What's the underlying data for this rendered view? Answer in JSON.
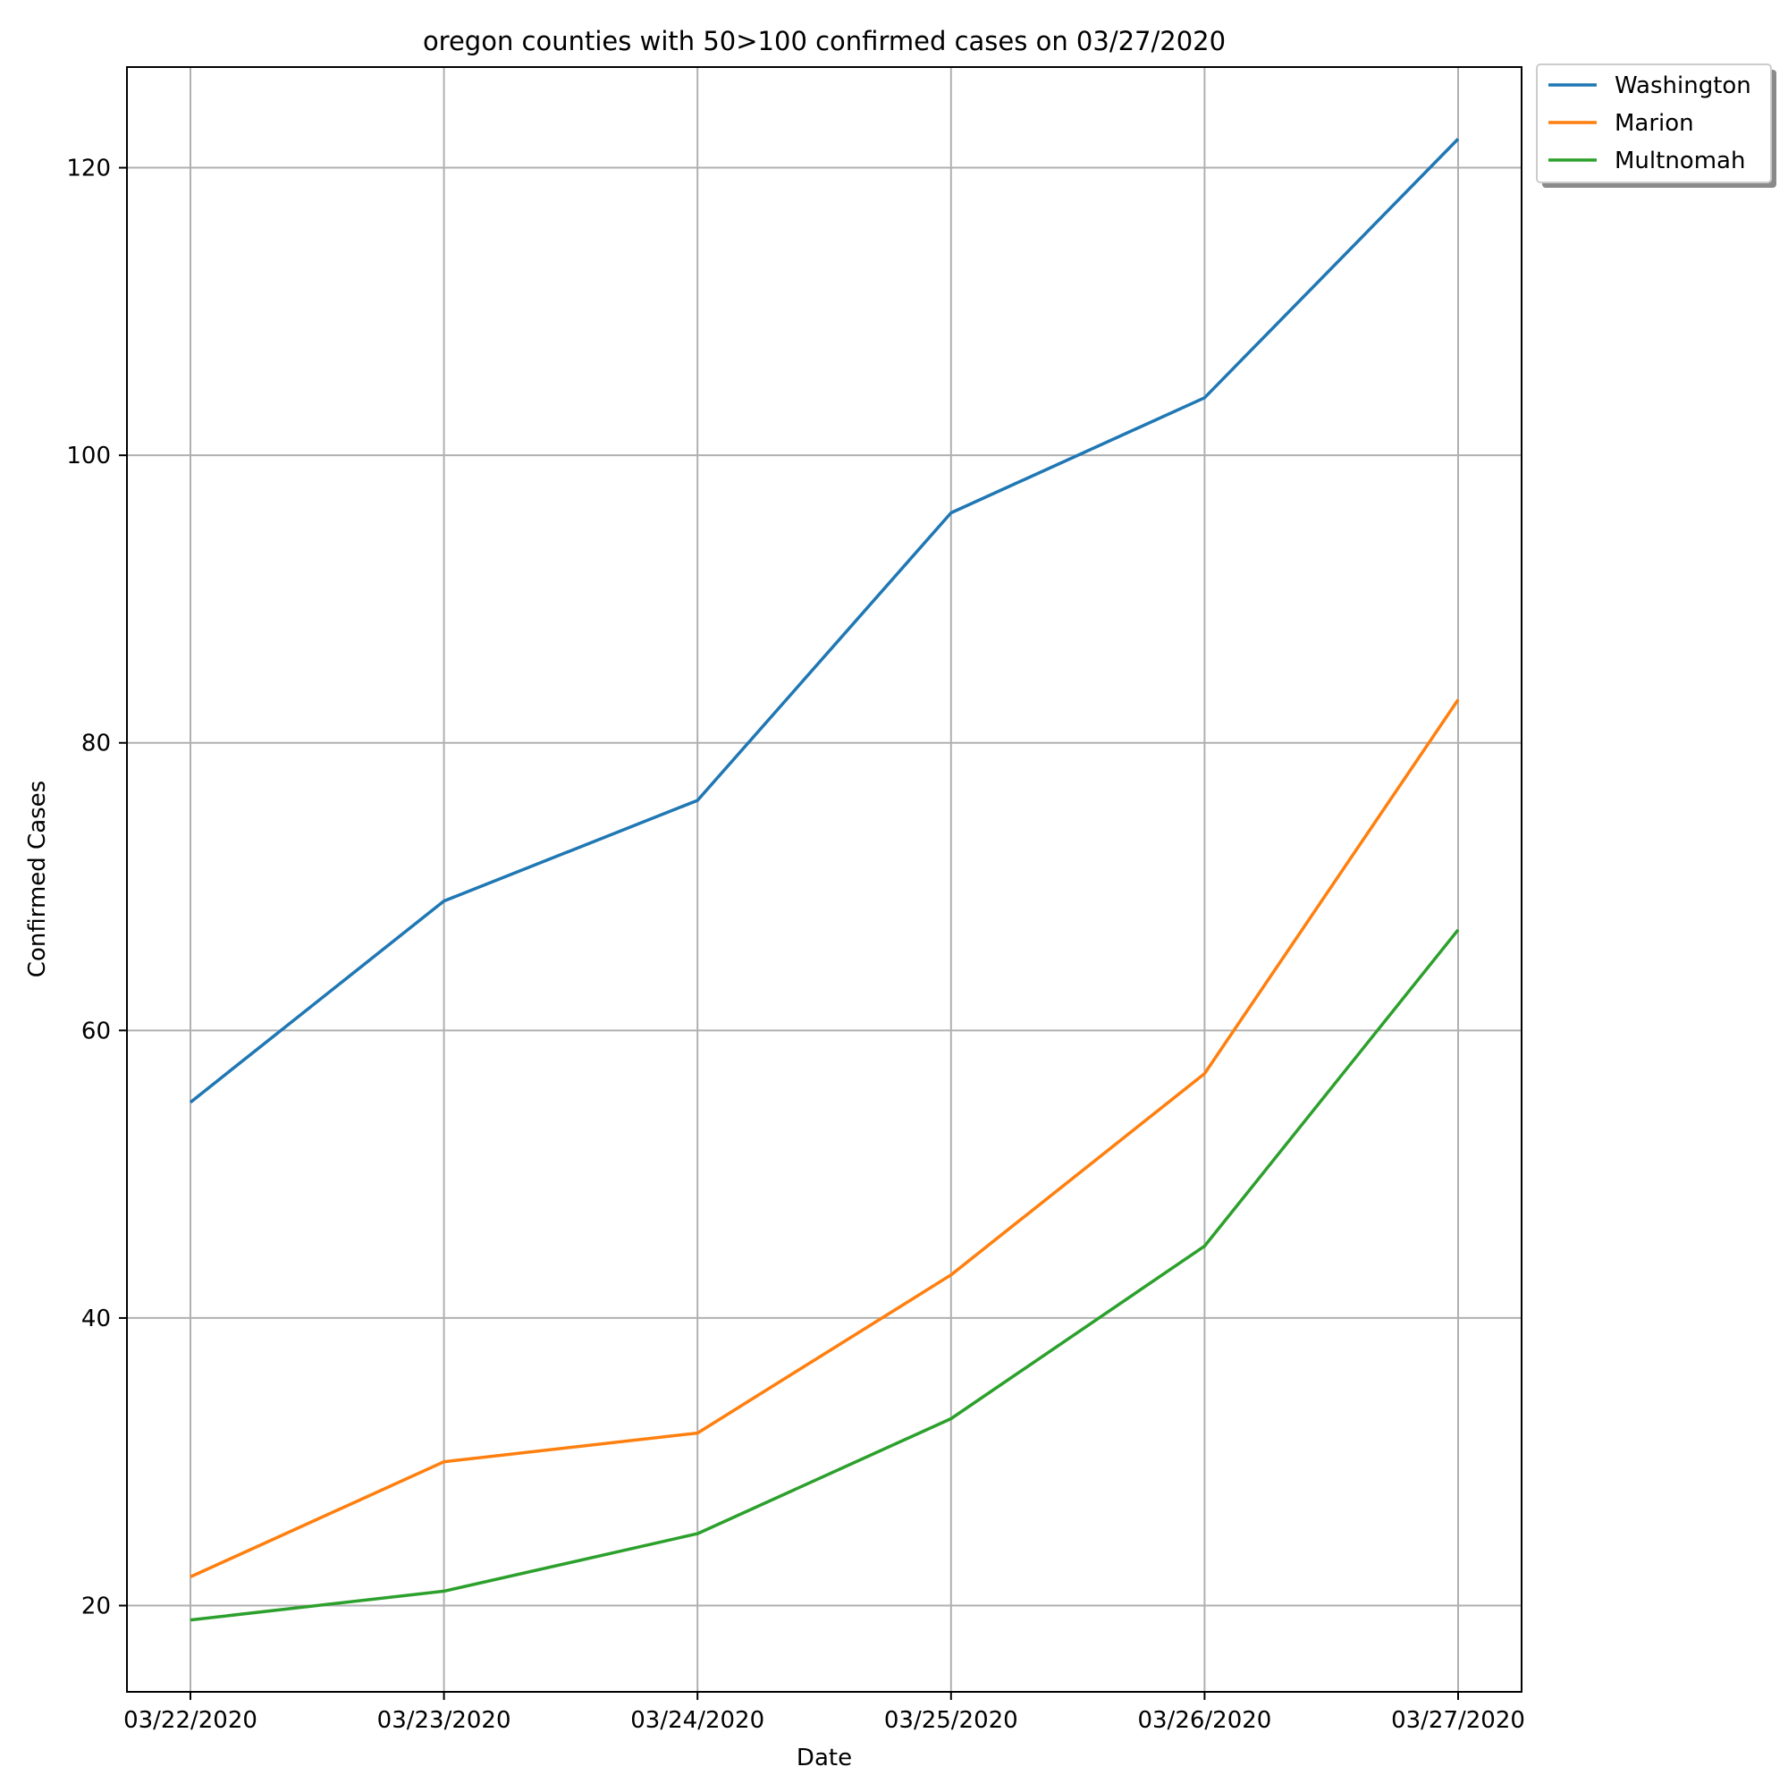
{
  "chart_data": {
    "type": "line",
    "title": "oregon counties with 50>100 confirmed cases on 03/27/2020",
    "xlabel": "Date",
    "ylabel": "Confirmed Cases",
    "categories": [
      "03/22/2020",
      "03/23/2020",
      "03/24/2020",
      "03/25/2020",
      "03/26/2020",
      "03/27/2020"
    ],
    "ylim": [
      14,
      127
    ],
    "yticks": [
      20,
      40,
      60,
      80,
      100,
      120
    ],
    "grid": true,
    "legend_position": "outside-top-right",
    "series": [
      {
        "name": "Washington",
        "color": "#1f77b4",
        "values": [
          55,
          69,
          76,
          96,
          104,
          122
        ]
      },
      {
        "name": "Marion",
        "color": "#ff7f0e",
        "values": [
          22,
          30,
          32,
          43,
          57,
          83
        ]
      },
      {
        "name": "Multnomah",
        "color": "#2ca02c",
        "values": [
          19,
          21,
          25,
          33,
          45,
          67
        ]
      }
    ]
  }
}
